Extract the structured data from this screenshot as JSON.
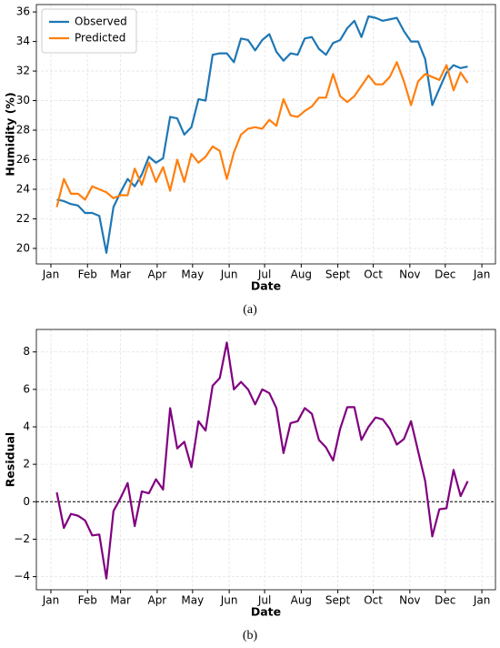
{
  "chart_data": [
    {
      "type": "line",
      "xlabel": "Date",
      "ylabel": "Humidity (%)",
      "caption": "(a)",
      "x": [
        5,
        11,
        17,
        23,
        29,
        35,
        41,
        47,
        53,
        59,
        65,
        71,
        77,
        83,
        89,
        95,
        101,
        107,
        113,
        119,
        125,
        131,
        137,
        143,
        149,
        155,
        161,
        167,
        173,
        179,
        185,
        191,
        197,
        203,
        209,
        215,
        221,
        227,
        233,
        239,
        245,
        251,
        257,
        263,
        269,
        275,
        281,
        287,
        293,
        299,
        305,
        311,
        317,
        323,
        329,
        335,
        341,
        347,
        353
      ],
      "series": [
        {
          "name": "Observed",
          "color": "#1f77b4",
          "values": [
            23.3,
            23.2,
            23.0,
            22.9,
            22.4,
            22.4,
            22.2,
            19.7,
            22.8,
            23.8,
            24.7,
            24.2,
            25.0,
            26.2,
            25.8,
            26.1,
            28.9,
            28.8,
            27.7,
            28.2,
            30.1,
            30.0,
            33.1,
            33.2,
            33.2,
            32.6,
            34.2,
            34.1,
            33.4,
            34.1,
            34.5,
            33.3,
            32.7,
            33.2,
            33.1,
            34.2,
            34.3,
            33.5,
            33.1,
            33.9,
            34.1,
            34.9,
            35.4,
            34.3,
            35.7,
            35.6,
            35.4,
            35.5,
            35.6,
            34.7,
            34.0,
            34.0,
            32.8,
            29.7,
            30.8,
            31.9,
            32.4,
            32.2,
            32.3
          ]
        },
        {
          "name": "Predicted",
          "color": "#ff7f0e",
          "values": [
            22.8,
            24.7,
            23.7,
            23.7,
            23.3,
            24.2,
            24.0,
            23.8,
            23.4,
            23.6,
            23.6,
            25.4,
            24.3,
            25.8,
            24.5,
            25.5,
            23.9,
            26.0,
            24.5,
            26.4,
            25.8,
            26.2,
            26.9,
            26.6,
            24.7,
            26.5,
            27.7,
            28.1,
            28.2,
            28.1,
            28.7,
            28.3,
            30.1,
            29.0,
            28.9,
            29.3,
            29.6,
            30.2,
            30.2,
            31.8,
            30.3,
            29.9,
            30.3,
            31.0,
            31.7,
            31.1,
            31.1,
            31.6,
            32.6,
            31.3,
            29.7,
            31.3,
            31.8,
            31.6,
            31.4,
            32.4,
            30.7,
            31.9,
            31.2
          ]
        }
      ],
      "xlim": [
        -12.3,
        376.5
      ],
      "xticks": [
        {
          "value": 0,
          "label": "Jan"
        },
        {
          "value": 31,
          "label": "Feb"
        },
        {
          "value": 59,
          "label": "Mar"
        },
        {
          "value": 90,
          "label": "Apr"
        },
        {
          "value": 120,
          "label": "May"
        },
        {
          "value": 151,
          "label": "Jun"
        },
        {
          "value": 181,
          "label": "Jul"
        },
        {
          "value": 212,
          "label": "Aug"
        },
        {
          "value": 243,
          "label": "Sept"
        },
        {
          "value": 273,
          "label": "Oct"
        },
        {
          "value": 304,
          "label": "Nov"
        },
        {
          "value": 334,
          "label": "Dec"
        },
        {
          "value": 365,
          "label": "Jan"
        }
      ],
      "ylim": [
        18.95,
        36.5
      ],
      "yticks": [
        20,
        22,
        24,
        26,
        28,
        30,
        32,
        34,
        36
      ],
      "grid": true,
      "legend": "upper left"
    },
    {
      "type": "line",
      "xlabel": "Date",
      "ylabel": "Residual",
      "caption": "(b)",
      "x": [
        5,
        11,
        17,
        23,
        29,
        35,
        41,
        47,
        53,
        59,
        65,
        71,
        77,
        83,
        89,
        95,
        101,
        107,
        113,
        119,
        125,
        131,
        137,
        143,
        149,
        155,
        161,
        167,
        173,
        179,
        185,
        191,
        197,
        203,
        209,
        215,
        221,
        227,
        233,
        239,
        245,
        251,
        257,
        263,
        269,
        275,
        281,
        287,
        293,
        299,
        305,
        311,
        317,
        323,
        329,
        335,
        341,
        347,
        353
      ],
      "series": [
        {
          "color": "#800080",
          "values": [
            0.5,
            -1.4,
            -0.65,
            -0.75,
            -1.0,
            -1.8,
            -1.75,
            -4.1,
            -0.5,
            0.2,
            1.0,
            -1.3,
            0.55,
            0.45,
            1.2,
            0.65,
            5.0,
            2.85,
            3.2,
            1.85,
            4.3,
            3.8,
            6.2,
            6.6,
            8.5,
            6.0,
            6.4,
            6.0,
            5.2,
            6.0,
            5.8,
            5.0,
            2.6,
            4.2,
            4.3,
            5.0,
            4.7,
            3.3,
            2.9,
            2.2,
            3.9,
            5.05,
            5.05,
            3.3,
            4.0,
            4.5,
            4.4,
            3.9,
            3.05,
            3.35,
            4.3,
            2.7,
            1.1,
            -1.85,
            -0.4,
            -0.35,
            1.7,
            0.3,
            1.1
          ]
        }
      ],
      "hline": 0,
      "xlim": [
        -12.3,
        376.5
      ],
      "xticks": [
        {
          "value": 0,
          "label": "Jan"
        },
        {
          "value": 31,
          "label": "Feb"
        },
        {
          "value": 59,
          "label": "Mar"
        },
        {
          "value": 90,
          "label": "Apr"
        },
        {
          "value": 120,
          "label": "May"
        },
        {
          "value": 151,
          "label": "Jun"
        },
        {
          "value": 181,
          "label": "Jul"
        },
        {
          "value": 212,
          "label": "Aug"
        },
        {
          "value": 243,
          "label": "Sept"
        },
        {
          "value": 273,
          "label": "Oct"
        },
        {
          "value": 304,
          "label": "Nov"
        },
        {
          "value": 334,
          "label": "Dec"
        },
        {
          "value": 365,
          "label": "Jan"
        }
      ],
      "ylim": [
        -4.7,
        9.2
      ],
      "yticks": [
        {
          "value": -4,
          "label": "−4"
        },
        {
          "value": -2,
          "label": "−2"
        },
        0,
        2,
        4,
        6,
        8
      ],
      "grid": true
    }
  ]
}
